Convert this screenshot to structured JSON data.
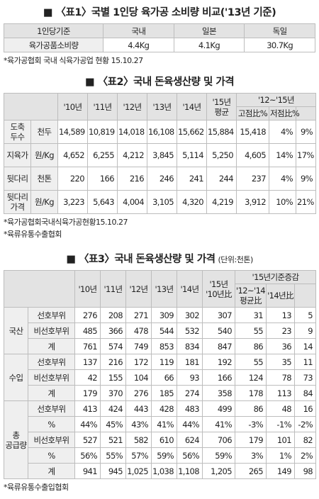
{
  "table1": {
    "title": "■ 〈표1〉국별 1인당 육가공 소비량 비교('13년 기준)",
    "header": [
      "1인당기준",
      "국내",
      "일본",
      "독일"
    ],
    "rows": [
      [
        "육가공품소비량",
        "4.4Kg",
        "4.1Kg",
        "30.7Kg"
      ]
    ],
    "note": "*육가공협회 국내 식육가공업 현황 15.10.27"
  },
  "table2": {
    "title": "■ 〈표2〉국내 돈육생산량 및 가격",
    "header_top": [
      "'10년",
      "'11년",
      "'12년",
      "'13년",
      "'14년",
      "'15년 평균",
      "'12~'15년"
    ],
    "header_sub": [
      "고점比%",
      "저점比%"
    ],
    "rows": [
      [
        "도축 두수",
        "천두",
        "14,589",
        "10,819",
        "14,018",
        "16,108",
        "15,662",
        "15,884",
        "15,418",
        "4%",
        "9%"
      ],
      [
        "지육가",
        "원/Kg",
        "4,652",
        "6,255",
        "4,212",
        "3,845",
        "5,114",
        "5,250",
        "4,605",
        "14%",
        "17%"
      ],
      [
        "뒷다리",
        "천톤",
        "220",
        "166",
        "216",
        "246",
        "241",
        "244",
        "237",
        "4%",
        "9%"
      ],
      [
        "뒷다리 가격",
        "원/Kg",
        "3,223",
        "5,643",
        "4,004",
        "3,105",
        "4,320",
        "4,219",
        "3,912",
        "10%",
        "21%"
      ]
    ],
    "notes": [
      "*육가공협회국내식육가공현황15.10.27",
      "*육류유통수출협회"
    ]
  },
  "table3": {
    "title": "■ 〈표3〉국내 돈육생산량 및 가격",
    "unit": "(단위:천톤)",
    "header_top": [
      "'10년",
      "'11년",
      "'12년",
      "'13년",
      "'14년",
      "'15년 '10년比",
      "'15년기준증감"
    ],
    "header_sub": [
      "'12~'14 평균比",
      "'14년比"
    ],
    "groups": [
      {
        "label": "국산",
        "rows": [
          [
            "선호부위",
            "276",
            "208",
            "271",
            "309",
            "302",
            "307",
            "31",
            "13",
            "5"
          ],
          [
            "비선호부위",
            "485",
            "366",
            "478",
            "544",
            "532",
            "540",
            "55",
            "23",
            "9"
          ],
          [
            "계",
            "761",
            "574",
            "749",
            "853",
            "834",
            "847",
            "86",
            "36",
            "14"
          ]
        ]
      },
      {
        "label": "수입",
        "rows": [
          [
            "선호부위",
            "137",
            "216",
            "172",
            "119",
            "181",
            "192",
            "55",
            "35",
            "11"
          ],
          [
            "비선호부위",
            "42",
            "155",
            "104",
            "66",
            "93",
            "166",
            "124",
            "78",
            "73"
          ],
          [
            "계",
            "179",
            "370",
            "276",
            "185",
            "274",
            "358",
            "178",
            "113",
            "84"
          ]
        ]
      },
      {
        "label": "총 공급량",
        "rows": [
          [
            "선호부위",
            "413",
            "424",
            "443",
            "428",
            "483",
            "499",
            "86",
            "48",
            "16"
          ],
          [
            "%",
            "44%",
            "45%",
            "43%",
            "41%",
            "44%",
            "41%",
            "-3%",
            "-1%",
            "-2%"
          ],
          [
            "비선호부위",
            "527",
            "521",
            "582",
            "610",
            "624",
            "706",
            "179",
            "101",
            "82"
          ],
          [
            "%",
            "56%",
            "55%",
            "57%",
            "59%",
            "56%",
            "59%",
            "3%",
            "1%",
            "2%"
          ],
          [
            "계",
            "941",
            "945",
            "1,025",
            "1,038",
            "1,108",
            "1,205",
            "265",
            "149",
            "98"
          ]
        ]
      }
    ],
    "note": "*육류유통수출입협회"
  }
}
